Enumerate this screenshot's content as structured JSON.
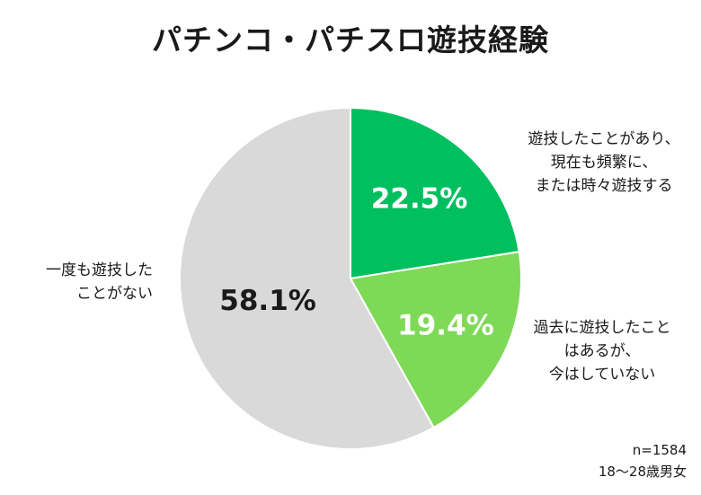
{
  "chart_data": {
    "type": "pie",
    "title": "パチンコ・パチスロ遊技経験",
    "slices": [
      {
        "name_lines": [
          "遊技したことがあり、",
          "現在も頻繁に、",
          "または時々遊技する"
        ],
        "value": 22.5,
        "label": "22.5%",
        "color": "#00bf5f",
        "label_color": "#ffffff"
      },
      {
        "name_lines": [
          "過去に遊技したこと",
          "はあるが、",
          "今はしていない"
        ],
        "value": 19.4,
        "label": "19.4%",
        "color": "#7ed957",
        "label_color": "#ffffff"
      },
      {
        "name_lines": [
          "一度も遊技した",
          "ことがない"
        ],
        "value": 58.1,
        "label": "58.1%",
        "color": "#d9d9d9",
        "label_color": "#1a1a1a"
      }
    ],
    "start_angle": "12 o'clock",
    "direction": "clockwise"
  },
  "footnote": {
    "sample": "n=1584",
    "population": "18～28歳男女"
  }
}
